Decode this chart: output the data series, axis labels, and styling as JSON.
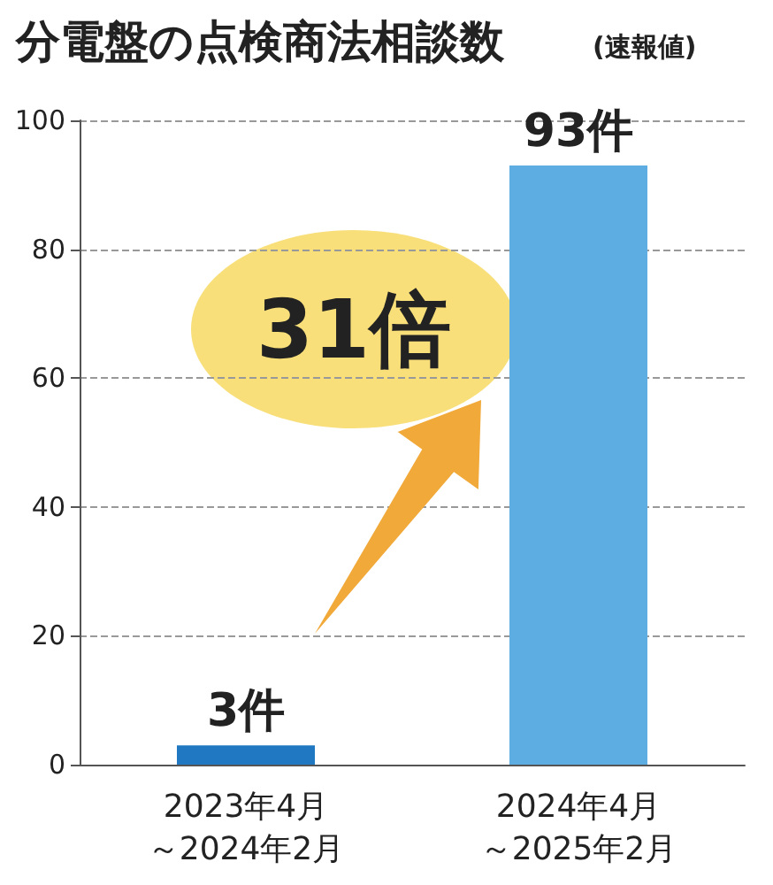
{
  "chart_data": {
    "type": "bar",
    "title": "分電盤の点検商法相談数",
    "subtitle": "(速報値)",
    "categories": [
      "2023年4月～2024年2月",
      "2024年4月～2025年2月"
    ],
    "values": [
      3,
      93
    ],
    "colors": [
      "#1f78c1",
      "#5dade2"
    ],
    "value_labels": [
      "3件",
      "93件"
    ],
    "ylim": [
      0,
      100
    ],
    "yticks": [
      0,
      20,
      40,
      60,
      80,
      100
    ],
    "grid": "y",
    "annotations": [
      "31倍"
    ]
  }
}
